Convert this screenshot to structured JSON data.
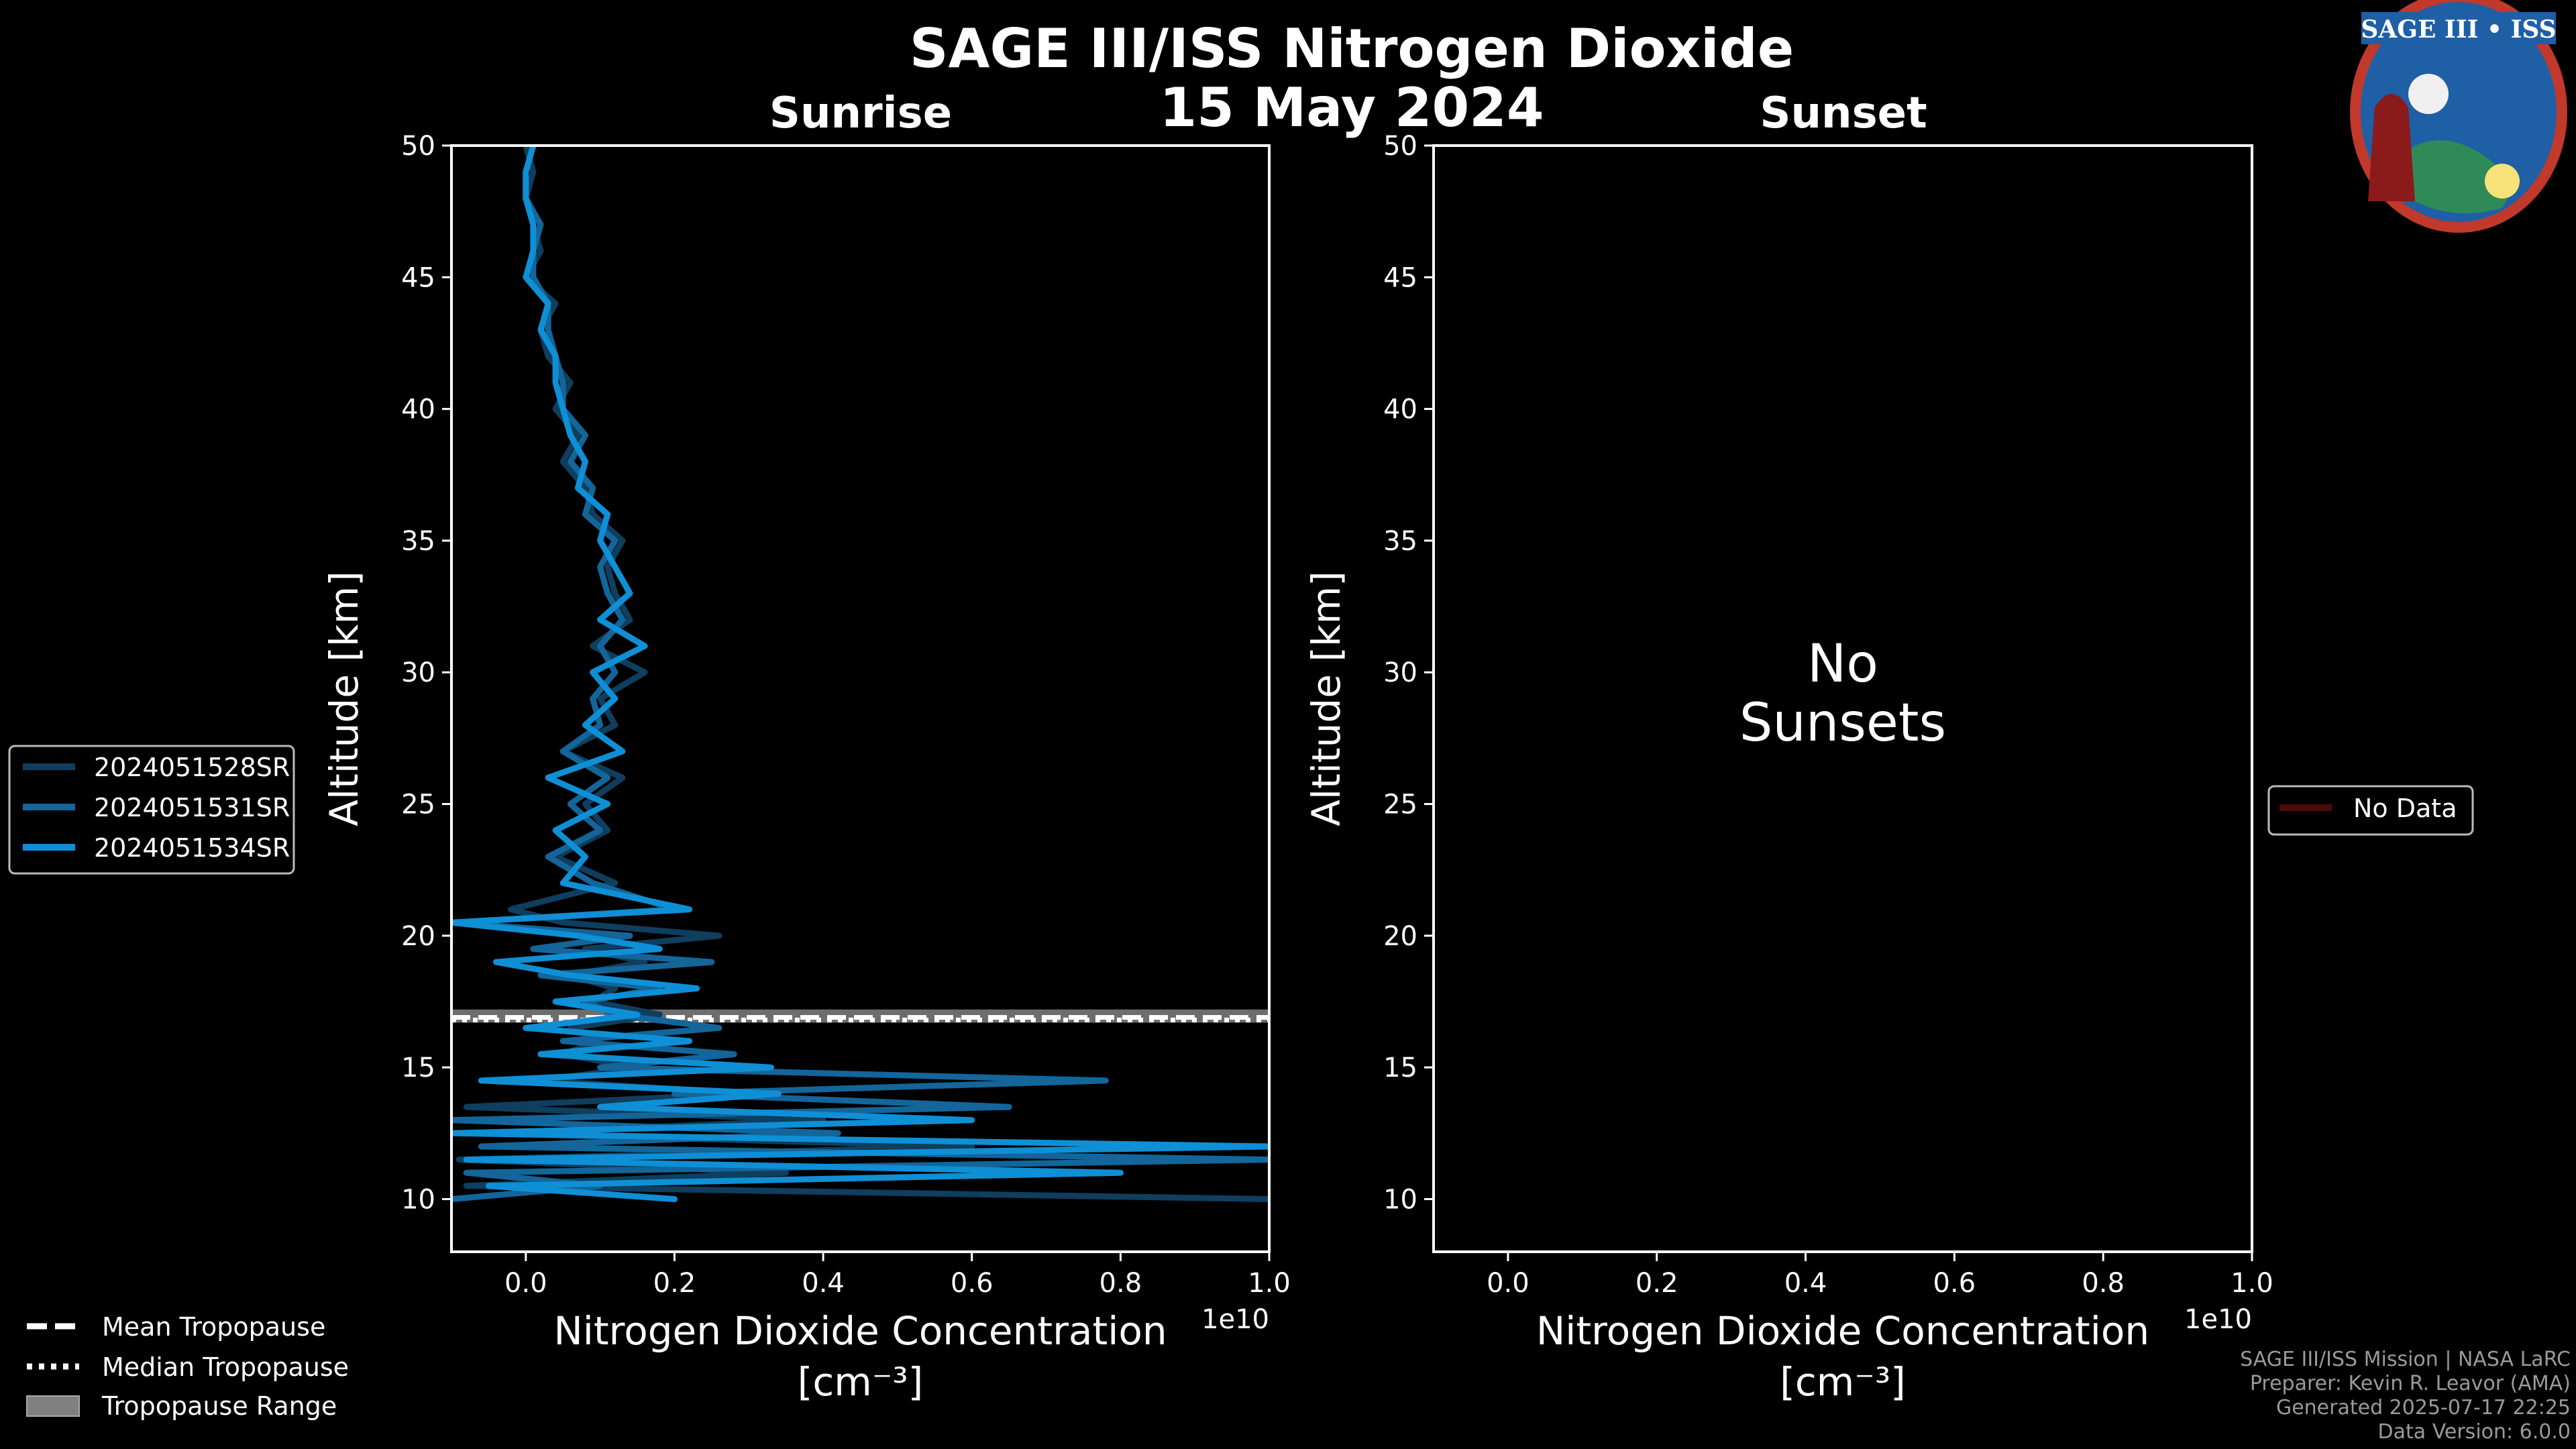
{
  "title": "SAGE III/ISS Nitrogen Dioxide",
  "date": "15 May 2024",
  "logo": {
    "text": "SAGE III • ISS",
    "colors": {
      "ring": "#c0392b",
      "sky": "#1f5fa6",
      "land": "#2e8b57"
    }
  },
  "credits": [
    "SAGE III/ISS Mission | NASA LaRC",
    "Preparer: Kevin R. Leavor (AMA)",
    "Generated 2025-07-17 22:25",
    "Data Version: 6.0.0"
  ],
  "tropopause_legend": [
    {
      "style": "dashed",
      "label": "Mean Tropopause"
    },
    {
      "style": "dotted",
      "label": "Median Tropopause"
    },
    {
      "style": "band",
      "label": "Tropopause Range"
    }
  ],
  "chart_data": [
    {
      "type": "line",
      "title": "Sunrise",
      "xlabel": "Nitrogen Dioxide Concentration",
      "xlabel_unit": "[cm⁻³]",
      "x_multiplier": "1e10",
      "ylabel": "Altitude [km]",
      "xlim": [
        -0.1,
        1.0
      ],
      "ylim": [
        8,
        50
      ],
      "xticks": [
        "0.0",
        "0.2",
        "0.4",
        "0.6",
        "0.8",
        "1.0"
      ],
      "yticks": [
        "10",
        "15",
        "20",
        "25",
        "30",
        "35",
        "40",
        "45",
        "50"
      ],
      "legend_position": "left",
      "tropopause": {
        "mean": 16.9,
        "median": 16.8,
        "range": [
          16.7,
          17.2
        ]
      },
      "series": [
        {
          "name": "2024051528SR",
          "color": "#0f3e5e",
          "altitude": [
            10.0,
            10.5,
            11.0,
            11.5,
            12.0,
            12.5,
            13.0,
            13.5,
            14.0,
            14.5,
            15.0,
            15.5,
            16.0,
            16.5,
            17.0,
            17.5,
            18.0,
            18.5,
            19.0,
            19.5,
            20.0,
            20.5,
            21.0,
            22.0,
            23.0,
            24.0,
            25.0,
            26.0,
            27.0,
            28.0,
            29.0,
            30.0,
            31.0,
            32.0,
            33.0,
            34.0,
            35.0,
            36.0,
            37.0,
            38.0,
            39.0,
            40.0,
            41.0,
            42.0,
            43.0,
            44.0,
            45.0,
            46.0,
            47.0,
            48.0,
            49.0,
            50.0
          ],
          "values": [
            1.0,
            -0.08,
            0.35,
            -0.09,
            0.6,
            -0.05,
            0.4,
            -0.08,
            0.3,
            0.02,
            0.15,
            0.05,
            0.1,
            0.06,
            0.18,
            0.09,
            0.12,
            0.06,
            0.16,
            0.08,
            0.26,
            0.05,
            -0.02,
            0.12,
            0.04,
            0.11,
            0.08,
            0.13,
            0.05,
            0.12,
            0.1,
            0.16,
            0.09,
            0.14,
            0.12,
            0.11,
            0.13,
            0.09,
            0.08,
            0.05,
            0.07,
            0.04,
            0.06,
            0.03,
            0.02,
            0.04,
            0.0,
            0.02,
            0.01,
            0.0,
            0.01,
            0.0
          ]
        },
        {
          "name": "2024051531SR",
          "color": "#13659a",
          "altitude": [
            10.0,
            10.5,
            11.0,
            11.5,
            12.0,
            12.5,
            13.0,
            13.5,
            14.0,
            14.5,
            15.0,
            15.5,
            16.0,
            16.5,
            17.0,
            17.5,
            18.0,
            18.5,
            19.0,
            19.5,
            20.0,
            20.5,
            21.0,
            22.0,
            23.0,
            24.0,
            25.0,
            26.0,
            27.0,
            28.0,
            29.0,
            30.0,
            31.0,
            32.0,
            33.0,
            34.0,
            35.0,
            36.0,
            37.0,
            38.0,
            39.0,
            40.0,
            41.0,
            42.0,
            43.0,
            44.0,
            45.0,
            46.0,
            47.0,
            48.0,
            49.0,
            50.0
          ],
          "values": [
            -0.1,
            0.1,
            -0.08,
            1.0,
            -0.06,
            0.42,
            -0.1,
            0.65,
            0.2,
            0.78,
            0.1,
            0.28,
            0.05,
            0.26,
            0.12,
            0.08,
            0.18,
            0.02,
            0.25,
            0.01,
            0.14,
            -0.1,
            0.2,
            0.09,
            0.03,
            0.1,
            0.06,
            0.11,
            0.05,
            0.1,
            0.09,
            0.12,
            0.1,
            0.13,
            0.11,
            0.1,
            0.12,
            0.08,
            0.09,
            0.06,
            0.08,
            0.05,
            0.05,
            0.04,
            0.03,
            0.03,
            0.01,
            0.01,
            0.02,
            0.0,
            0.0,
            0.01
          ]
        },
        {
          "name": "2024051534SR",
          "color": "#0e8fd6",
          "altitude": [
            10.0,
            10.5,
            11.0,
            11.5,
            12.0,
            12.5,
            13.0,
            13.5,
            14.0,
            14.5,
            15.0,
            15.5,
            16.0,
            16.5,
            17.0,
            17.5,
            18.0,
            18.5,
            19.0,
            19.5,
            20.0,
            20.5,
            21.0,
            22.0,
            23.0,
            24.0,
            25.0,
            26.0,
            27.0,
            28.0,
            29.0,
            30.0,
            31.0,
            32.0,
            33.0,
            34.0,
            35.0,
            36.0,
            37.0,
            38.0,
            39.0,
            40.0,
            41.0,
            42.0,
            43.0,
            44.0,
            45.0,
            46.0,
            47.0,
            48.0,
            49.0,
            50.0
          ],
          "values": [
            0.2,
            -0.05,
            0.8,
            -0.08,
            1.0,
            -0.1,
            0.6,
            0.1,
            0.34,
            -0.06,
            0.33,
            0.02,
            0.22,
            0.0,
            0.15,
            0.04,
            0.23,
            0.06,
            -0.04,
            0.18,
            0.07,
            -0.1,
            0.22,
            0.05,
            0.08,
            0.04,
            0.11,
            0.03,
            0.13,
            0.08,
            0.12,
            0.09,
            0.16,
            0.1,
            0.14,
            0.12,
            0.1,
            0.11,
            0.07,
            0.08,
            0.06,
            0.05,
            0.04,
            0.04,
            0.02,
            0.03,
            0.0,
            0.01,
            0.01,
            0.0,
            0.0,
            0.01
          ]
        }
      ]
    },
    {
      "type": "line",
      "title": "Sunset",
      "xlabel": "Nitrogen Dioxide Concentration",
      "xlabel_unit": "[cm⁻³]",
      "x_multiplier": "1e10",
      "ylabel": "Altitude [km]",
      "xlim": [
        -0.1,
        1.0
      ],
      "ylim": [
        8,
        50
      ],
      "xticks": [
        "0.0",
        "0.2",
        "0.4",
        "0.6",
        "0.8",
        "1.0"
      ],
      "yticks": [
        "10",
        "15",
        "20",
        "25",
        "30",
        "35",
        "40",
        "45",
        "50"
      ],
      "legend_position": "right",
      "annotation": [
        "No",
        "Sunsets"
      ],
      "series": [
        {
          "name": "No Data",
          "color": "#4a0a0a",
          "altitude": [],
          "values": []
        }
      ]
    }
  ]
}
